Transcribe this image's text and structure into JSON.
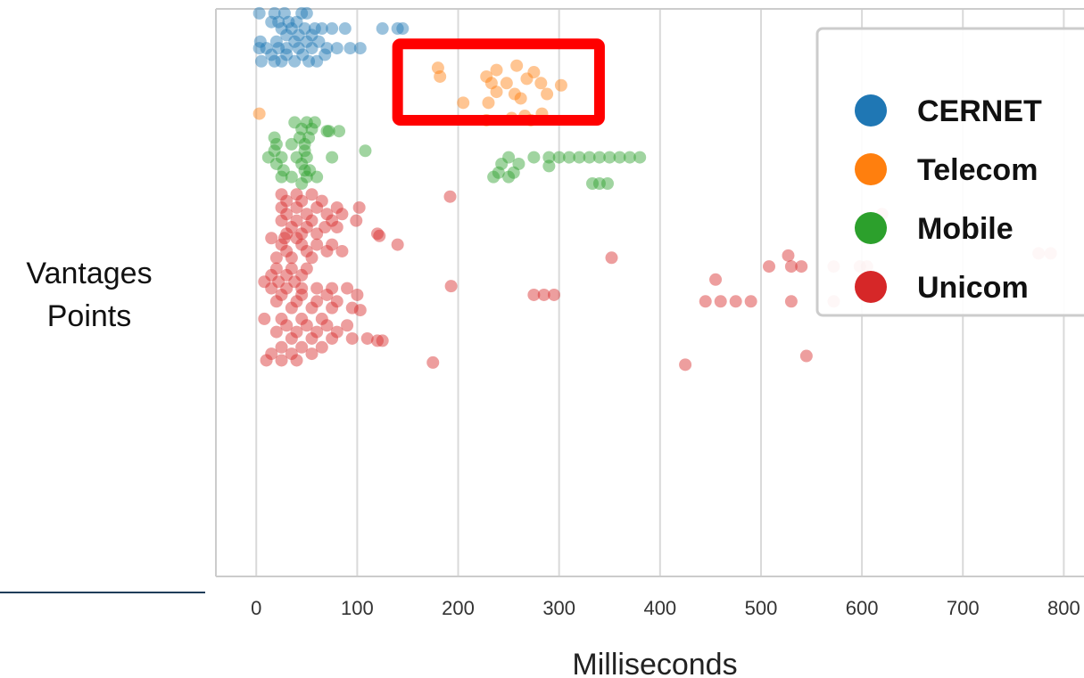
{
  "chart_data": {
    "type": "scatter",
    "xlabel": "Milliseconds",
    "ylabel_lines": [
      "Vantages",
      "Points"
    ],
    "x_ticks": [
      0,
      100,
      200,
      300,
      400,
      500,
      600,
      700,
      800
    ],
    "xlim": [
      -40,
      820
    ],
    "ylim": [
      0,
      26
    ],
    "grid": "vertical",
    "legend_position": "top-right",
    "highlight_box": {
      "x_range": [
        140,
        340
      ],
      "y_range": [
        20.9,
        24.4
      ],
      "color": "#ff0000"
    },
    "series": [
      {
        "name": "CERNET",
        "color": "#1f77b4",
        "points": [
          [
            3,
            25.8
          ],
          [
            18,
            25.8
          ],
          [
            28,
            25.8
          ],
          [
            45,
            25.8
          ],
          [
            50,
            25.8
          ],
          [
            15,
            25.4
          ],
          [
            22,
            25.4
          ],
          [
            32,
            25.4
          ],
          [
            40,
            25.4
          ],
          [
            25,
            25.1
          ],
          [
            35,
            25.1
          ],
          [
            48,
            25.1
          ],
          [
            58,
            25.1
          ],
          [
            65,
            25.1
          ],
          [
            75,
            25.1
          ],
          [
            88,
            25.1
          ],
          [
            125,
            25.1
          ],
          [
            140,
            25.1
          ],
          [
            145,
            25.1
          ],
          [
            30,
            24.8
          ],
          [
            42,
            24.8
          ],
          [
            55,
            24.8
          ],
          [
            4,
            24.5
          ],
          [
            20,
            24.5
          ],
          [
            38,
            24.5
          ],
          [
            50,
            24.5
          ],
          [
            62,
            24.5
          ],
          [
            3,
            24.2
          ],
          [
            10,
            24.2
          ],
          [
            22,
            24.2
          ],
          [
            30,
            24.2
          ],
          [
            42,
            24.2
          ],
          [
            55,
            24.2
          ],
          [
            70,
            24.2
          ],
          [
            80,
            24.2
          ],
          [
            93,
            24.2
          ],
          [
            103,
            24.2
          ],
          [
            15,
            23.9
          ],
          [
            30,
            23.9
          ],
          [
            46,
            23.9
          ],
          [
            68,
            23.9
          ],
          [
            5,
            23.6
          ],
          [
            18,
            23.6
          ],
          [
            25,
            23.6
          ],
          [
            38,
            23.6
          ],
          [
            52,
            23.6
          ],
          [
            60,
            23.6
          ]
        ]
      },
      {
        "name": "Telecom",
        "color": "#ff7f0e",
        "points": [
          [
            180,
            23.3
          ],
          [
            258,
            23.4
          ],
          [
            238,
            23.2
          ],
          [
            275,
            23.1
          ],
          [
            182,
            22.9
          ],
          [
            228,
            22.9
          ],
          [
            268,
            22.8
          ],
          [
            282,
            22.6
          ],
          [
            233,
            22.6
          ],
          [
            248,
            22.6
          ],
          [
            302,
            22.5
          ],
          [
            238,
            22.2
          ],
          [
            256,
            22.1
          ],
          [
            288,
            22.1
          ],
          [
            262,
            21.9
          ],
          [
            205,
            21.7
          ],
          [
            230,
            21.7
          ],
          [
            3,
            21.2
          ],
          [
            266,
            21.1
          ],
          [
            283,
            21.2
          ],
          [
            253,
            21.0
          ],
          [
            228,
            20.9
          ],
          [
            272,
            20.9
          ]
        ]
      },
      {
        "name": "Mobile",
        "color": "#2ca02c",
        "points": [
          [
            38,
            20.8
          ],
          [
            50,
            20.8
          ],
          [
            58,
            20.8
          ],
          [
            45,
            20.5
          ],
          [
            55,
            20.5
          ],
          [
            72,
            20.4
          ],
          [
            82,
            20.4
          ],
          [
            70,
            20.4
          ],
          [
            18,
            20.1
          ],
          [
            43,
            20.1
          ],
          [
            52,
            20.1
          ],
          [
            20,
            19.8
          ],
          [
            35,
            19.8
          ],
          [
            48,
            19.8
          ],
          [
            18,
            19.5
          ],
          [
            48,
            19.5
          ],
          [
            108,
            19.5
          ],
          [
            12,
            19.2
          ],
          [
            25,
            19.2
          ],
          [
            40,
            19.2
          ],
          [
            50,
            19.2
          ],
          [
            75,
            19.2
          ],
          [
            20,
            18.9
          ],
          [
            45,
            18.9
          ],
          [
            27,
            18.6
          ],
          [
            48,
            18.6
          ],
          [
            53,
            18.6
          ],
          [
            25,
            18.3
          ],
          [
            35,
            18.3
          ],
          [
            50,
            18.3
          ],
          [
            60,
            18.3
          ],
          [
            45,
            18.0
          ],
          [
            250,
            19.2
          ],
          [
            275,
            19.2
          ],
          [
            290,
            19.2
          ],
          [
            300,
            19.2
          ],
          [
            310,
            19.2
          ],
          [
            320,
            19.2
          ],
          [
            330,
            19.2
          ],
          [
            340,
            19.2
          ],
          [
            350,
            19.2
          ],
          [
            360,
            19.2
          ],
          [
            370,
            19.2
          ],
          [
            380,
            19.2
          ],
          [
            243,
            18.9
          ],
          [
            260,
            18.9
          ],
          [
            290,
            18.8
          ],
          [
            240,
            18.5
          ],
          [
            255,
            18.5
          ],
          [
            250,
            18.3
          ],
          [
            235,
            18.3
          ],
          [
            333,
            18.0
          ],
          [
            340,
            18.0
          ],
          [
            348,
            18.0
          ]
        ]
      },
      {
        "name": "Unicom",
        "color": "#d62728",
        "points": [
          [
            25,
            17.5
          ],
          [
            40,
            17.5
          ],
          [
            55,
            17.5
          ],
          [
            30,
            17.2
          ],
          [
            45,
            17.2
          ],
          [
            65,
            17.2
          ],
          [
            25,
            16.9
          ],
          [
            40,
            16.9
          ],
          [
            60,
            16.9
          ],
          [
            80,
            16.9
          ],
          [
            102,
            16.9
          ],
          [
            30,
            16.6
          ],
          [
            50,
            16.6
          ],
          [
            70,
            16.6
          ],
          [
            85,
            16.6
          ],
          [
            25,
            16.3
          ],
          [
            40,
            16.3
          ],
          [
            55,
            16.3
          ],
          [
            75,
            16.3
          ],
          [
            99,
            16.3
          ],
          [
            35,
            16.0
          ],
          [
            50,
            16.0
          ],
          [
            68,
            16.0
          ],
          [
            80,
            16.0
          ],
          [
            30,
            15.7
          ],
          [
            45,
            15.7
          ],
          [
            60,
            15.7
          ],
          [
            120,
            15.7
          ],
          [
            15,
            15.5
          ],
          [
            28,
            15.5
          ],
          [
            40,
            15.5
          ],
          [
            25,
            15.2
          ],
          [
            45,
            15.2
          ],
          [
            60,
            15.2
          ],
          [
            75,
            15.2
          ],
          [
            140,
            15.2
          ],
          [
            30,
            14.9
          ],
          [
            50,
            14.9
          ],
          [
            70,
            14.9
          ],
          [
            85,
            14.9
          ],
          [
            20,
            14.6
          ],
          [
            35,
            14.6
          ],
          [
            55,
            14.6
          ],
          [
            20,
            14.1
          ],
          [
            35,
            14.1
          ],
          [
            50,
            14.1
          ],
          [
            15,
            13.8
          ],
          [
            30,
            13.8
          ],
          [
            45,
            13.8
          ],
          [
            8,
            13.5
          ],
          [
            22,
            13.5
          ],
          [
            38,
            13.5
          ],
          [
            15,
            13.2
          ],
          [
            30,
            13.2
          ],
          [
            45,
            13.2
          ],
          [
            60,
            13.2
          ],
          [
            75,
            13.2
          ],
          [
            90,
            13.2
          ],
          [
            25,
            12.9
          ],
          [
            45,
            12.9
          ],
          [
            70,
            12.9
          ],
          [
            100,
            12.9
          ],
          [
            20,
            12.6
          ],
          [
            40,
            12.6
          ],
          [
            60,
            12.6
          ],
          [
            80,
            12.6
          ],
          [
            35,
            12.3
          ],
          [
            55,
            12.3
          ],
          [
            75,
            12.3
          ],
          [
            95,
            12.3
          ],
          [
            103,
            12.2
          ],
          [
            8,
            11.8
          ],
          [
            25,
            11.8
          ],
          [
            45,
            11.8
          ],
          [
            65,
            11.8
          ],
          [
            30,
            11.5
          ],
          [
            50,
            11.5
          ],
          [
            70,
            11.5
          ],
          [
            90,
            11.5
          ],
          [
            20,
            11.2
          ],
          [
            40,
            11.2
          ],
          [
            60,
            11.2
          ],
          [
            80,
            11.2
          ],
          [
            35,
            10.9
          ],
          [
            55,
            10.9
          ],
          [
            75,
            10.9
          ],
          [
            95,
            10.9
          ],
          [
            110,
            10.9
          ],
          [
            120,
            10.8
          ],
          [
            125,
            10.8
          ],
          [
            25,
            10.5
          ],
          [
            45,
            10.5
          ],
          [
            65,
            10.5
          ],
          [
            15,
            10.2
          ],
          [
            35,
            10.2
          ],
          [
            55,
            10.2
          ],
          [
            10,
            9.9
          ],
          [
            25,
            9.9
          ],
          [
            40,
            9.9
          ],
          [
            175,
            9.8
          ],
          [
            425,
            9.7
          ],
          [
            192,
            17.4
          ],
          [
            620,
            16.6
          ],
          [
            122,
            15.6
          ],
          [
            352,
            14.6
          ],
          [
            527,
            14.7
          ],
          [
            508,
            14.2
          ],
          [
            530,
            14.2
          ],
          [
            540,
            14.2
          ],
          [
            572,
            14.2
          ],
          [
            598,
            14.2
          ],
          [
            605,
            14.2
          ],
          [
            775,
            14.8
          ],
          [
            787,
            14.8
          ],
          [
            193,
            13.3
          ],
          [
            275,
            12.9
          ],
          [
            285,
            12.9
          ],
          [
            295,
            12.9
          ],
          [
            455,
            13.6
          ],
          [
            445,
            12.6
          ],
          [
            460,
            12.6
          ],
          [
            475,
            12.6
          ],
          [
            490,
            12.6
          ],
          [
            530,
            12.6
          ],
          [
            572,
            12.6
          ],
          [
            545,
            10.1
          ]
        ]
      }
    ]
  }
}
